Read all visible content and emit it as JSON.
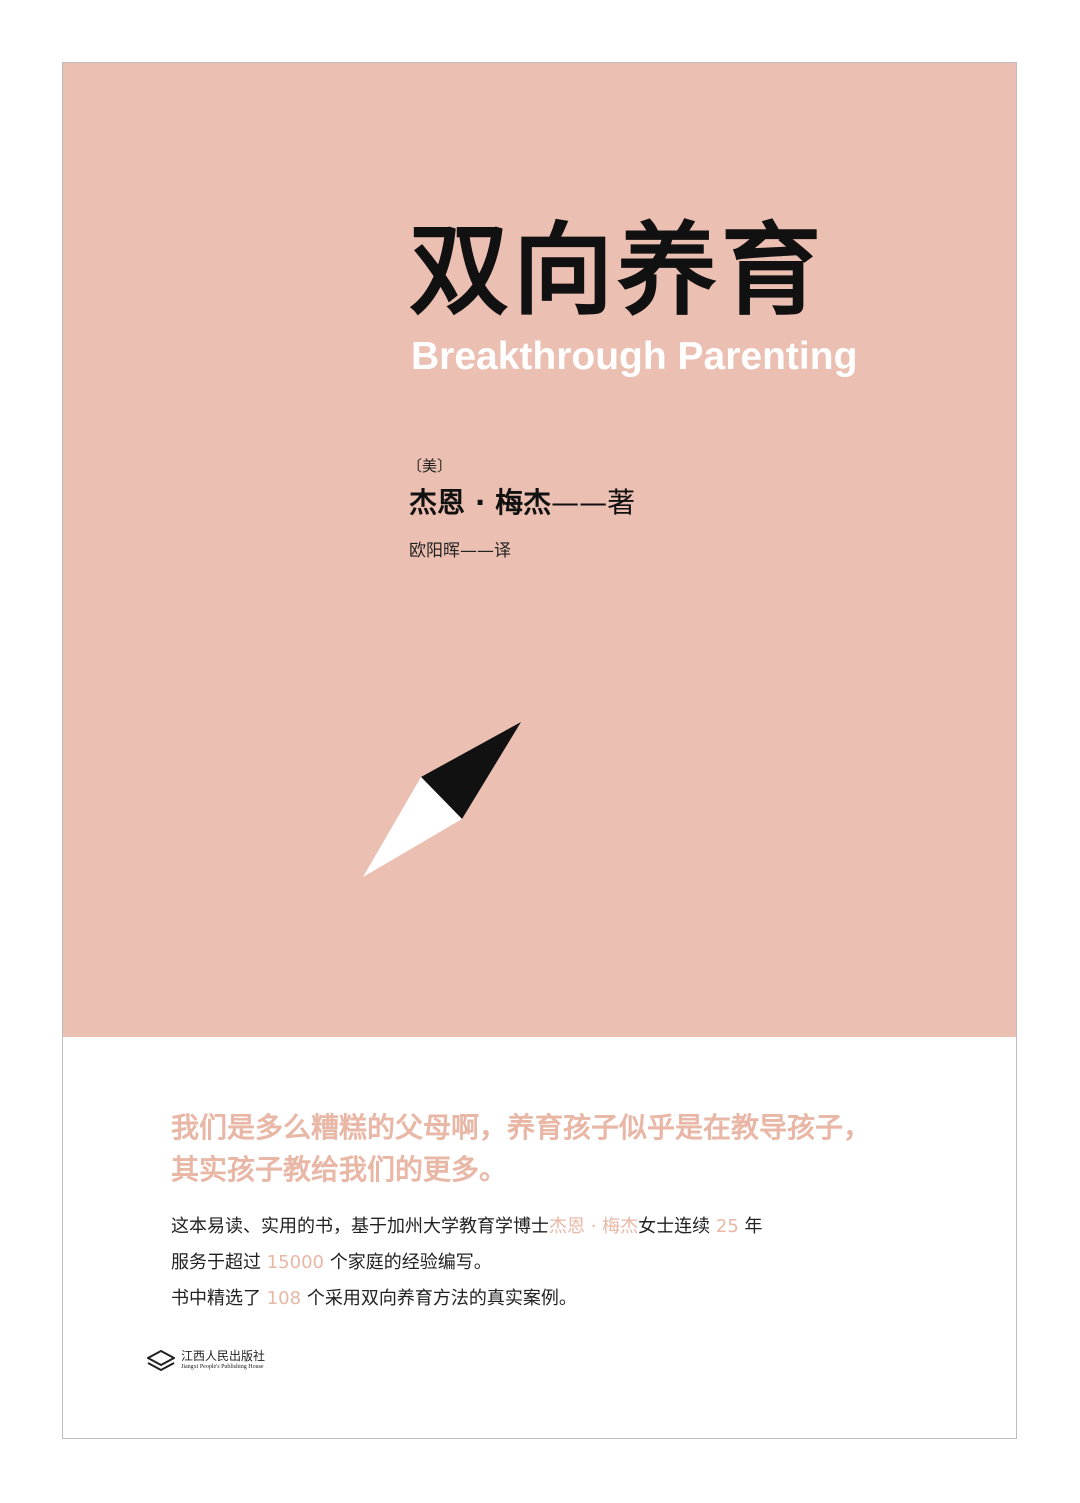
{
  "cover": {
    "title_zh": "双向养育",
    "title_en": "Breakthrough Parenting",
    "nationality": "〔美〕",
    "author_name": "杰恩 · 梅杰",
    "author_suffix": "——著",
    "translator": "欧阳晖——译",
    "tagline": [
      "我们是多么糟糕的父母啊，养育孩子似乎是在教导孩子，",
      "其实孩子教给我们的更多。"
    ],
    "description": {
      "line1_a": "这本易读、实用的书，基于加州大学教育学博士",
      "line1_author": "杰恩 · 梅杰",
      "line1_b": "女士连续",
      "line1_years": "25",
      "line1_c": "年",
      "line2_a": "服务于超过",
      "line2_families": "15000",
      "line2_b": "个家庭的经验编写。",
      "line3_a": "书中精选了",
      "line3_cases": "108",
      "line3_b": "个采用双向养育方法的真实案例。"
    },
    "publisher": {
      "name_zh": "江西人民出版社",
      "name_en": "Jiangxi People's Publishing House",
      "logo_icon": "publisher-logo-icon"
    },
    "compass_icon": "compass-needle-icon",
    "colors": {
      "panel": "#ebbfb1",
      "accent": "#e8b7a6",
      "text": "#111111"
    }
  }
}
